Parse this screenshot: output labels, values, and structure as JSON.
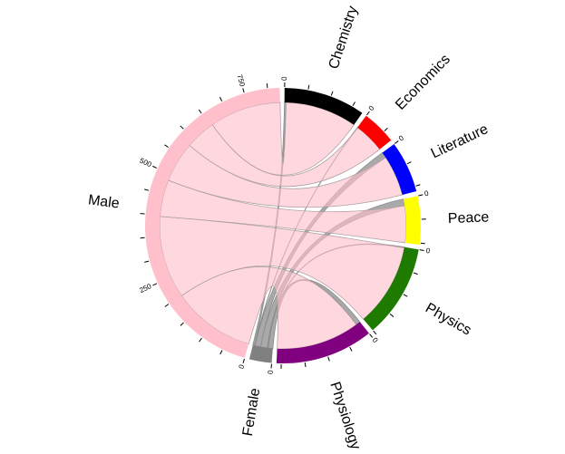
{
  "chart_data": {
    "type": "chord",
    "groups": [
      {
        "name": "Chemistry",
        "label": "Chemistry",
        "color": "#000000",
        "total": 175
      },
      {
        "name": "Economics",
        "label": "Economics",
        "color": "#ff0000",
        "total": 74
      },
      {
        "name": "Literature",
        "label": "Literature",
        "color": "#0000ff",
        "total": 111
      },
      {
        "name": "Peace",
        "label": "Peace",
        "color": "#ffff00",
        "total": 104
      },
      {
        "name": "Physics",
        "label": "Physics",
        "color": "#1e7b00",
        "total": 200
      },
      {
        "name": "Physiology",
        "label": "Physiology",
        "color": "#800080",
        "total": 210
      },
      {
        "name": "Female",
        "label": "Female",
        "color": "#808080",
        "total": 48
      },
      {
        "name": "Male",
        "label": "Male",
        "color": "#ffc0cb",
        "total": 826
      }
    ],
    "links": [
      {
        "source": "Chemistry",
        "target": "Female",
        "value": 4
      },
      {
        "source": "Chemistry",
        "target": "Male",
        "value": 171
      },
      {
        "source": "Economics",
        "target": "Female",
        "value": 1
      },
      {
        "source": "Economics",
        "target": "Male",
        "value": 73
      },
      {
        "source": "Literature",
        "target": "Female",
        "value": 14
      },
      {
        "source": "Literature",
        "target": "Male",
        "value": 97
      },
      {
        "source": "Peace",
        "target": "Female",
        "value": 16
      },
      {
        "source": "Peace",
        "target": "Male",
        "value": 88
      },
      {
        "source": "Physics",
        "target": "Female",
        "value": 2
      },
      {
        "source": "Physics",
        "target": "Male",
        "value": 198
      },
      {
        "source": "Physiology",
        "target": "Female",
        "value": 11
      },
      {
        "source": "Physiology",
        "target": "Male",
        "value": 199
      }
    ],
    "tick_step": 50,
    "tick_label_step": 250,
    "legend": "none"
  }
}
